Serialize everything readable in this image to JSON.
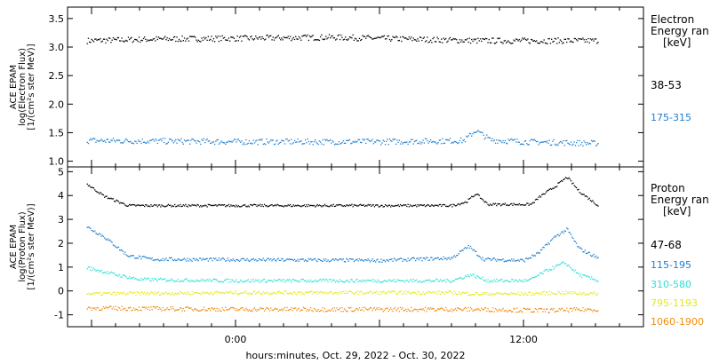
{
  "footer": {
    "xlabel": "hours:minutes, Oct. 29, 2022 - Oct. 30, 2022"
  },
  "colors": {
    "axis": "#000000",
    "background": "#ffffff",
    "black": "#000000",
    "blue": "#1f7fd0",
    "cyan": "#2ee0d6",
    "yellow": "#e4e81a",
    "orange": "#f08c10"
  },
  "chart_data": [
    {
      "type": "scatter",
      "title": "",
      "ylabel_lines": [
        "ACE EPAM",
        "log(Electron Flux)",
        "[1/(cm²s ster MeV)]"
      ],
      "ylim": [
        0.9,
        3.7
      ],
      "yticks": [
        1.0,
        1.5,
        2.0,
        2.5,
        3.0,
        3.5
      ],
      "yticklabels": [
        "1.0",
        "1.5",
        "2.0",
        "2.5",
        "3.0",
        "3.5"
      ],
      "xlim_hours": [
        -7,
        17
      ],
      "xticks_hours": [
        0,
        12
      ],
      "xticklabels": [
        "0:00",
        "12:00"
      ],
      "legend_title": [
        "Electron",
        "Energy ran",
        "[keV]"
      ],
      "grid": false,
      "series": [
        {
          "name": "38-53",
          "color": "#000000",
          "noise": 0.05,
          "anchors": [
            [
              -6.2,
              3.12
            ],
            [
              -3,
              3.15
            ],
            [
              0,
              3.16
            ],
            [
              4,
              3.18
            ],
            [
              7,
              3.15
            ],
            [
              10,
              3.12
            ],
            [
              12,
              3.12
            ],
            [
              15.1,
              3.12
            ]
          ]
        },
        {
          "name": "175-315",
          "color": "#1f7fd0",
          "noise": 0.05,
          "anchors": [
            [
              -6.2,
              1.37
            ],
            [
              0,
              1.35
            ],
            [
              6,
              1.35
            ],
            [
              9.5,
              1.37
            ],
            [
              10.0,
              1.55
            ],
            [
              10.6,
              1.38
            ],
            [
              12,
              1.35
            ],
            [
              15.1,
              1.32
            ]
          ]
        }
      ]
    },
    {
      "type": "scatter",
      "title": "",
      "ylabel_lines": [
        "ACE EPAM",
        "log(Proton Flux)",
        "[1/(cm²s ster MeV)]"
      ],
      "ylim": [
        -1.5,
        5.2
      ],
      "yticks": [
        -1,
        0,
        1,
        2,
        3,
        4,
        5
      ],
      "yticklabels": [
        "-1",
        "0",
        "1",
        "2",
        "3",
        "4",
        "5"
      ],
      "xlim_hours": [
        -7,
        17
      ],
      "xticks_hours": [
        0,
        12
      ],
      "xticklabels": [
        "0:00",
        "12:00"
      ],
      "legend_title": [
        "Proton",
        "Energy ran",
        "[keV]"
      ],
      "grid": false,
      "series": [
        {
          "name": "47-68",
          "color": "#000000",
          "noise": 0.05,
          "anchors": [
            [
              -6.2,
              4.5
            ],
            [
              -5.5,
              4.0
            ],
            [
              -4.5,
              3.6
            ],
            [
              0,
              3.6
            ],
            [
              9,
              3.6
            ],
            [
              9.6,
              3.75
            ],
            [
              10.0,
              4.1
            ],
            [
              10.5,
              3.65
            ],
            [
              12.3,
              3.65
            ],
            [
              12.7,
              4.0
            ],
            [
              13.3,
              4.4
            ],
            [
              13.8,
              4.8
            ],
            [
              14.3,
              4.2
            ],
            [
              15.1,
              3.6
            ]
          ]
        },
        {
          "name": "115-195",
          "color": "#1f7fd0",
          "noise": 0.07,
          "anchors": [
            [
              -6.2,
              2.7
            ],
            [
              -5.5,
              2.3
            ],
            [
              -4.5,
              1.5
            ],
            [
              -3.5,
              1.35
            ],
            [
              6,
              1.3
            ],
            [
              9,
              1.4
            ],
            [
              9.7,
              1.9
            ],
            [
              10.3,
              1.35
            ],
            [
              12,
              1.3
            ],
            [
              12.6,
              1.6
            ],
            [
              13.3,
              2.3
            ],
            [
              13.8,
              2.6
            ],
            [
              14.3,
              1.8
            ],
            [
              15.1,
              1.4
            ]
          ]
        },
        {
          "name": "310-580",
          "color": "#2ee0d6",
          "noise": 0.07,
          "anchors": [
            [
              -6.2,
              1.0
            ],
            [
              -5.0,
              0.7
            ],
            [
              -4.0,
              0.5
            ],
            [
              0,
              0.45
            ],
            [
              9,
              0.45
            ],
            [
              9.8,
              0.7
            ],
            [
              10.5,
              0.45
            ],
            [
              12.2,
              0.45
            ],
            [
              13.0,
              0.9
            ],
            [
              13.7,
              1.2
            ],
            [
              14.3,
              0.7
            ],
            [
              15.1,
              0.45
            ]
          ]
        },
        {
          "name": "795-1193",
          "color": "#e4e81a",
          "noise": 0.07,
          "anchors": [
            [
              -6.2,
              -0.1
            ],
            [
              0,
              -0.05
            ],
            [
              9,
              -0.05
            ],
            [
              10,
              -0.1
            ],
            [
              12,
              -0.1
            ],
            [
              13.5,
              -0.05
            ],
            [
              15.1,
              -0.1
            ]
          ]
        },
        {
          "name": "1060-1900",
          "color": "#f08c10",
          "noise": 0.09,
          "anchors": [
            [
              -6.2,
              -0.7
            ],
            [
              0,
              -0.75
            ],
            [
              6,
              -0.75
            ],
            [
              10,
              -0.75
            ],
            [
              13,
              -0.8
            ],
            [
              15.1,
              -0.75
            ]
          ]
        }
      ]
    }
  ]
}
